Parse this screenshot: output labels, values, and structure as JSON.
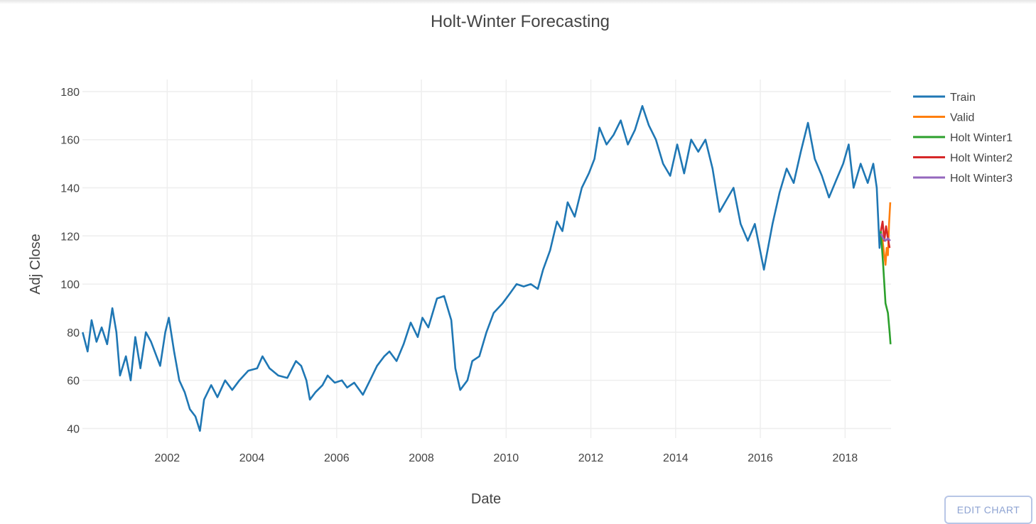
{
  "chart_data": {
    "type": "line",
    "title": "Holt-Winter Forecasting",
    "xlabel": "Date",
    "ylabel": "Adj Close",
    "xlim": [
      "2000-01-01",
      "2019-02-01"
    ],
    "ylim": [
      36,
      185
    ],
    "x_ticks": [
      "2002",
      "2004",
      "2006",
      "2008",
      "2010",
      "2012",
      "2014",
      "2016",
      "2018"
    ],
    "y_ticks": [
      40,
      60,
      80,
      100,
      120,
      140,
      160,
      180
    ],
    "grid": true,
    "legend_position": "top-right",
    "series": [
      {
        "name": "Train",
        "color": "#1f77b4",
        "points": [
          [
            "2000-01-03",
            80
          ],
          [
            "2000-02-15",
            72
          ],
          [
            "2000-03-20",
            85
          ],
          [
            "2000-05-01",
            76
          ],
          [
            "2000-06-15",
            82
          ],
          [
            "2000-08-01",
            75
          ],
          [
            "2000-09-15",
            90
          ],
          [
            "2000-10-20",
            80
          ],
          [
            "2000-11-20",
            62
          ],
          [
            "2001-01-10",
            70
          ],
          [
            "2001-02-20",
            60
          ],
          [
            "2001-04-01",
            78
          ],
          [
            "2001-05-15",
            65
          ],
          [
            "2001-07-01",
            80
          ],
          [
            "2001-08-15",
            76
          ],
          [
            "2001-10-01",
            70
          ],
          [
            "2001-11-01",
            66
          ],
          [
            "2001-12-15",
            80
          ],
          [
            "2002-01-15",
            86
          ],
          [
            "2002-03-01",
            72
          ],
          [
            "2002-04-15",
            60
          ],
          [
            "2002-06-01",
            55
          ],
          [
            "2002-07-15",
            48
          ],
          [
            "2002-09-01",
            45
          ],
          [
            "2002-10-10",
            39
          ],
          [
            "2002-11-15",
            52
          ],
          [
            "2003-01-15",
            58
          ],
          [
            "2003-03-10",
            53
          ],
          [
            "2003-05-15",
            60
          ],
          [
            "2003-07-15",
            56
          ],
          [
            "2003-09-15",
            60
          ],
          [
            "2003-12-01",
            64
          ],
          [
            "2004-02-15",
            65
          ],
          [
            "2004-04-01",
            70
          ],
          [
            "2004-06-01",
            65
          ],
          [
            "2004-08-15",
            62
          ],
          [
            "2004-11-01",
            61
          ],
          [
            "2005-01-15",
            68
          ],
          [
            "2005-03-01",
            66
          ],
          [
            "2005-04-15",
            60
          ],
          [
            "2005-05-15",
            52
          ],
          [
            "2005-07-01",
            55
          ],
          [
            "2005-09-01",
            58
          ],
          [
            "2005-10-15",
            62
          ],
          [
            "2005-12-15",
            59
          ],
          [
            "2006-02-15",
            60
          ],
          [
            "2006-04-01",
            57
          ],
          [
            "2006-06-01",
            59
          ],
          [
            "2006-08-15",
            54
          ],
          [
            "2006-10-15",
            60
          ],
          [
            "2006-12-15",
            66
          ],
          [
            "2007-02-15",
            70
          ],
          [
            "2007-04-01",
            72
          ],
          [
            "2007-06-01",
            68
          ],
          [
            "2007-08-01",
            75
          ],
          [
            "2007-10-01",
            84
          ],
          [
            "2007-12-01",
            78
          ],
          [
            "2008-01-10",
            86
          ],
          [
            "2008-03-01",
            82
          ],
          [
            "2008-05-15",
            94
          ],
          [
            "2008-07-15",
            95
          ],
          [
            "2008-09-15",
            85
          ],
          [
            "2008-10-20",
            65
          ],
          [
            "2008-12-01",
            56
          ],
          [
            "2009-02-01",
            60
          ],
          [
            "2009-03-15",
            68
          ],
          [
            "2009-05-15",
            70
          ],
          [
            "2009-07-15",
            80
          ],
          [
            "2009-09-15",
            88
          ],
          [
            "2009-12-01",
            92
          ],
          [
            "2010-02-01",
            96
          ],
          [
            "2010-04-01",
            100
          ],
          [
            "2010-06-01",
            99
          ],
          [
            "2010-08-01",
            100
          ],
          [
            "2010-10-01",
            98
          ],
          [
            "2010-11-15",
            106
          ],
          [
            "2011-01-15",
            114
          ],
          [
            "2011-03-15",
            126
          ],
          [
            "2011-05-01",
            122
          ],
          [
            "2011-06-15",
            134
          ],
          [
            "2011-08-15",
            128
          ],
          [
            "2011-10-15",
            140
          ],
          [
            "2011-12-15",
            146
          ],
          [
            "2012-02-01",
            152
          ],
          [
            "2012-03-15",
            165
          ],
          [
            "2012-05-15",
            158
          ],
          [
            "2012-07-15",
            162
          ],
          [
            "2012-09-15",
            168
          ],
          [
            "2012-11-15",
            158
          ],
          [
            "2013-01-15",
            164
          ],
          [
            "2013-03-20",
            174
          ],
          [
            "2013-05-15",
            166
          ],
          [
            "2013-07-15",
            160
          ],
          [
            "2013-09-15",
            150
          ],
          [
            "2013-11-15",
            145
          ],
          [
            "2014-01-15",
            158
          ],
          [
            "2014-03-15",
            146
          ],
          [
            "2014-05-15",
            160
          ],
          [
            "2014-07-15",
            155
          ],
          [
            "2014-09-15",
            160
          ],
          [
            "2014-11-15",
            148
          ],
          [
            "2015-01-15",
            130
          ],
          [
            "2015-03-15",
            135
          ],
          [
            "2015-05-15",
            140
          ],
          [
            "2015-07-15",
            125
          ],
          [
            "2015-09-15",
            118
          ],
          [
            "2015-11-15",
            125
          ],
          [
            "2016-02-01",
            106
          ],
          [
            "2016-04-15",
            125
          ],
          [
            "2016-06-15",
            138
          ],
          [
            "2016-08-15",
            148
          ],
          [
            "2016-10-15",
            142
          ],
          [
            "2016-12-15",
            155
          ],
          [
            "2017-02-15",
            167
          ],
          [
            "2017-04-15",
            152
          ],
          [
            "2017-06-15",
            145
          ],
          [
            "2017-08-15",
            136
          ],
          [
            "2017-10-15",
            143
          ],
          [
            "2017-12-15",
            150
          ],
          [
            "2018-02-01",
            158
          ],
          [
            "2018-03-15",
            140
          ],
          [
            "2018-05-15",
            150
          ],
          [
            "2018-07-15",
            142
          ],
          [
            "2018-09-01",
            150
          ],
          [
            "2018-10-01",
            140
          ],
          [
            "2018-10-25",
            115
          ],
          [
            "2018-11-05",
            122
          ]
        ]
      },
      {
        "name": "Valid",
        "color": "#ff7f0e",
        "points": [
          [
            "2018-11-05",
            122
          ],
          [
            "2018-11-20",
            118
          ],
          [
            "2018-12-05",
            112
          ],
          [
            "2018-12-15",
            108
          ],
          [
            "2018-12-25",
            115
          ],
          [
            "2019-01-05",
            112
          ],
          [
            "2019-01-15",
            125
          ],
          [
            "2019-01-25",
            134
          ]
        ]
      },
      {
        "name": "Holt Winter1",
        "color": "#2ca02c",
        "points": [
          [
            "2018-11-05",
            122
          ],
          [
            "2018-11-25",
            108
          ],
          [
            "2018-12-15",
            92
          ],
          [
            "2019-01-05",
            88
          ],
          [
            "2019-01-20",
            80
          ],
          [
            "2019-01-28",
            75
          ]
        ]
      },
      {
        "name": "Holt Winter2",
        "color": "#d62728",
        "points": [
          [
            "2018-11-05",
            122
          ],
          [
            "2018-11-20",
            126
          ],
          [
            "2018-12-05",
            118
          ],
          [
            "2018-12-20",
            124
          ],
          [
            "2019-01-05",
            119
          ],
          [
            "2019-01-20",
            115
          ]
        ]
      },
      {
        "name": "Holt Winter3",
        "color": "#9467bd",
        "points": [
          [
            "2018-11-05",
            121
          ],
          [
            "2018-11-25",
            119
          ],
          [
            "2018-12-15",
            118
          ],
          [
            "2019-01-05",
            119
          ],
          [
            "2019-01-25",
            118
          ]
        ]
      }
    ]
  },
  "controls": {
    "edit_chart_label": "EDIT CHART"
  }
}
